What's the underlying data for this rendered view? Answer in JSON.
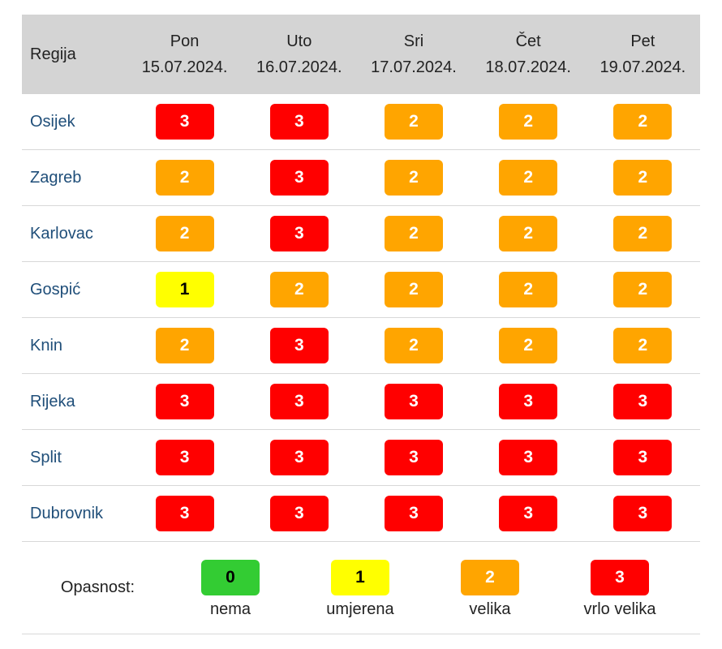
{
  "table": {
    "header": {
      "region": "Regija",
      "days": [
        {
          "name": "Pon",
          "date": "15.07.2024."
        },
        {
          "name": "Uto",
          "date": "16.07.2024."
        },
        {
          "name": "Sri",
          "date": "17.07.2024."
        },
        {
          "name": "Čet",
          "date": "18.07.2024."
        },
        {
          "name": "Pet",
          "date": "19.07.2024."
        }
      ]
    },
    "rows": [
      {
        "region": "Osijek",
        "values": [
          3,
          3,
          2,
          2,
          2
        ]
      },
      {
        "region": "Zagreb",
        "values": [
          2,
          3,
          2,
          2,
          2
        ]
      },
      {
        "region": "Karlovac",
        "values": [
          2,
          3,
          2,
          2,
          2
        ]
      },
      {
        "region": "Gospić",
        "values": [
          1,
          2,
          2,
          2,
          2
        ]
      },
      {
        "region": "Knin",
        "values": [
          2,
          3,
          2,
          2,
          2
        ]
      },
      {
        "region": "Rijeka",
        "values": [
          3,
          3,
          3,
          3,
          3
        ]
      },
      {
        "region": "Split",
        "values": [
          3,
          3,
          3,
          3,
          3
        ]
      },
      {
        "region": "Dubrovnik",
        "values": [
          3,
          3,
          3,
          3,
          3
        ]
      }
    ]
  },
  "legend": {
    "label": "Opasnost:",
    "items": [
      {
        "level": 0,
        "label": "nema",
        "color": "#33cc33",
        "text_color": "#000000"
      },
      {
        "level": 1,
        "label": "umjerena",
        "color": "#ffff00",
        "text_color": "#000000"
      },
      {
        "level": 2,
        "label": "velika",
        "color": "#ffa500",
        "text_color": "#ffffff"
      },
      {
        "level": 3,
        "label": "vrlo velika",
        "color": "#ff0000",
        "text_color": "#ffffff"
      }
    ]
  }
}
